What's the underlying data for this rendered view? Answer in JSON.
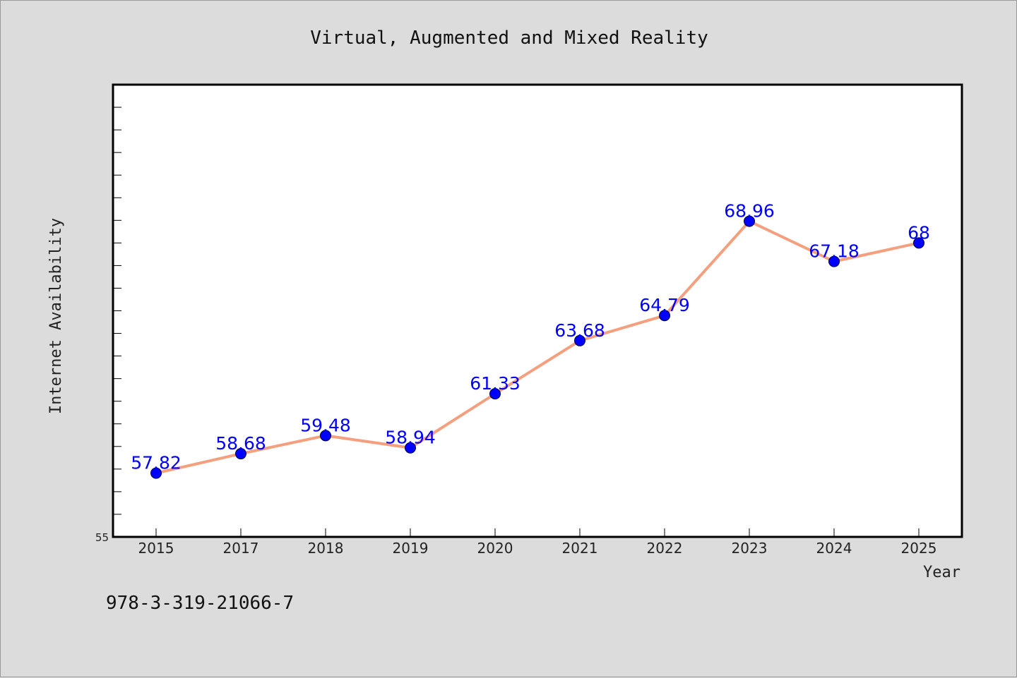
{
  "footer_text": "978-3-319-21066-7",
  "chart_data": {
    "type": "line",
    "title": "Virtual, Augmented and Mixed Reality",
    "xlabel": "Year",
    "ylabel": "Internet Availability",
    "categories": [
      "2015",
      "2017",
      "2018",
      "2019",
      "2020",
      "2021",
      "2022",
      "2023",
      "2024",
      "2025"
    ],
    "series": [
      {
        "values": [
          57.82,
          58.68,
          59.48,
          58.94,
          61.33,
          63.68,
          64.79,
          68.96,
          67.18,
          68
        ],
        "labels": [
          "57.82",
          "58.68",
          "59.48",
          "58.94",
          "61.33",
          "63.68",
          "64.79",
          "68.96",
          "67.18",
          "68"
        ],
        "line_color": "#f4a07e",
        "marker_color": "#0000ff"
      }
    ],
    "ylim": [
      55,
      75
    ],
    "yticks_labeled": [
      "55"
    ],
    "grid": false,
    "legend": "none",
    "background": "#ffffff"
  }
}
